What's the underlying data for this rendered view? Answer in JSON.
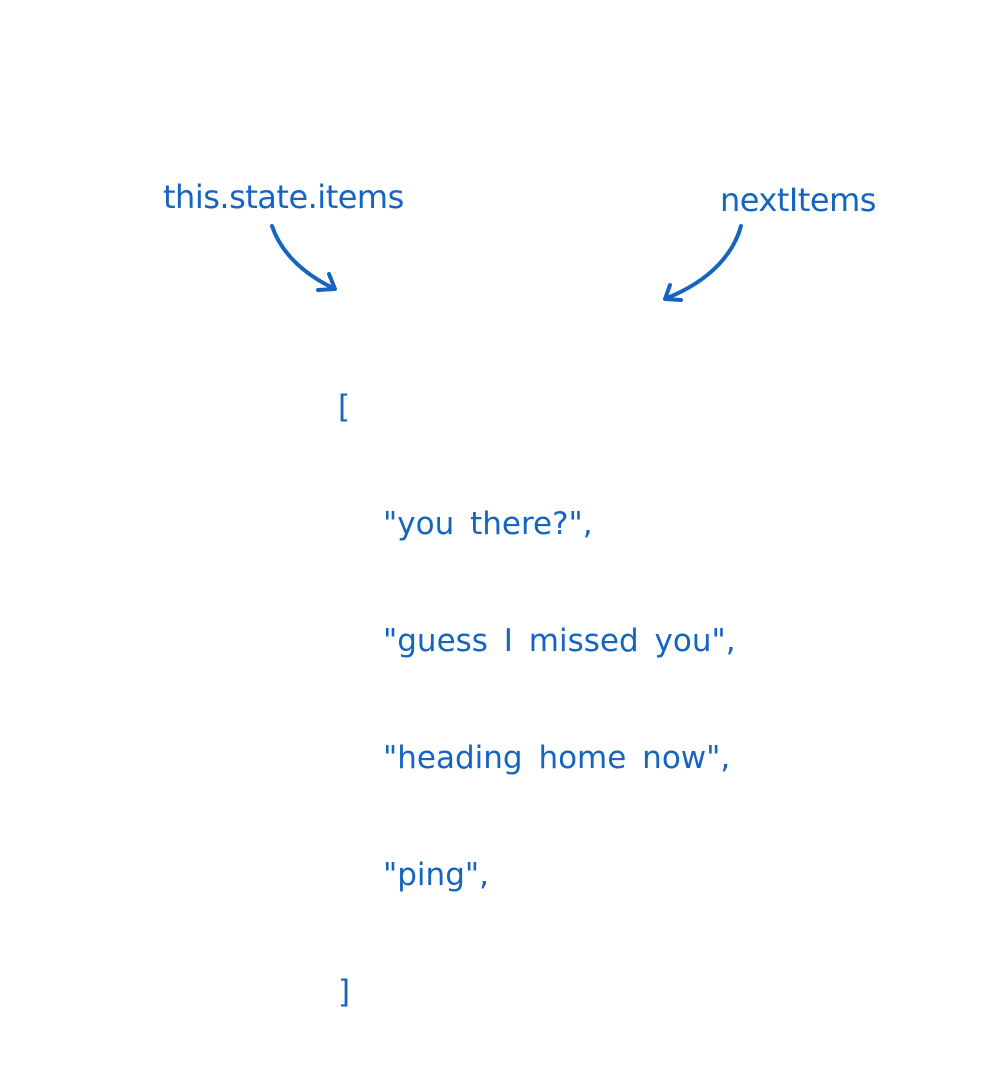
{
  "colors": {
    "ink": "#1565C0"
  },
  "labels": {
    "left": "this.state.items",
    "right": "nextItems"
  },
  "code": {
    "open_bracket": "[",
    "items": [
      "\"you there?\",",
      "\"guess I missed you\",",
      "\"heading home now\",",
      "\"ping\","
    ],
    "close_bracket": "]"
  }
}
